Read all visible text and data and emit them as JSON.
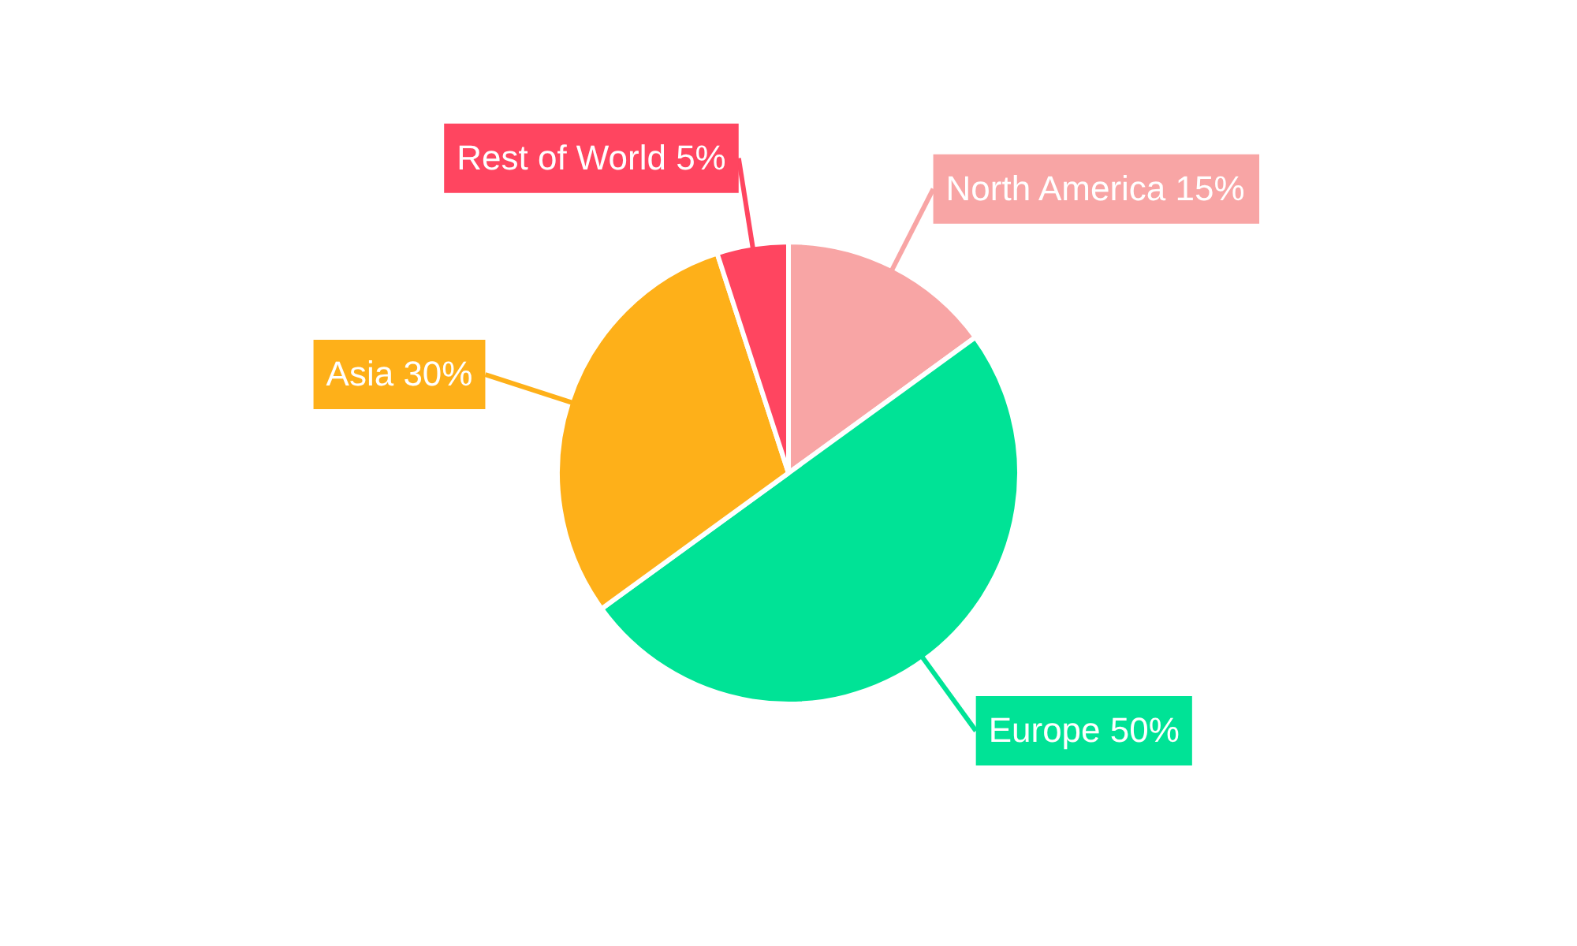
{
  "chart_data": {
    "type": "pie",
    "categories": [
      "North America",
      "Europe",
      "Asia",
      "Rest of World"
    ],
    "values": [
      15,
      50,
      30,
      5
    ],
    "colors": [
      "#f8a5a5",
      "#00e396",
      "#feb019",
      "#ff4560"
    ],
    "value_labels": [
      "15%",
      "50%",
      "30%",
      "5%"
    ],
    "legend": false
  }
}
